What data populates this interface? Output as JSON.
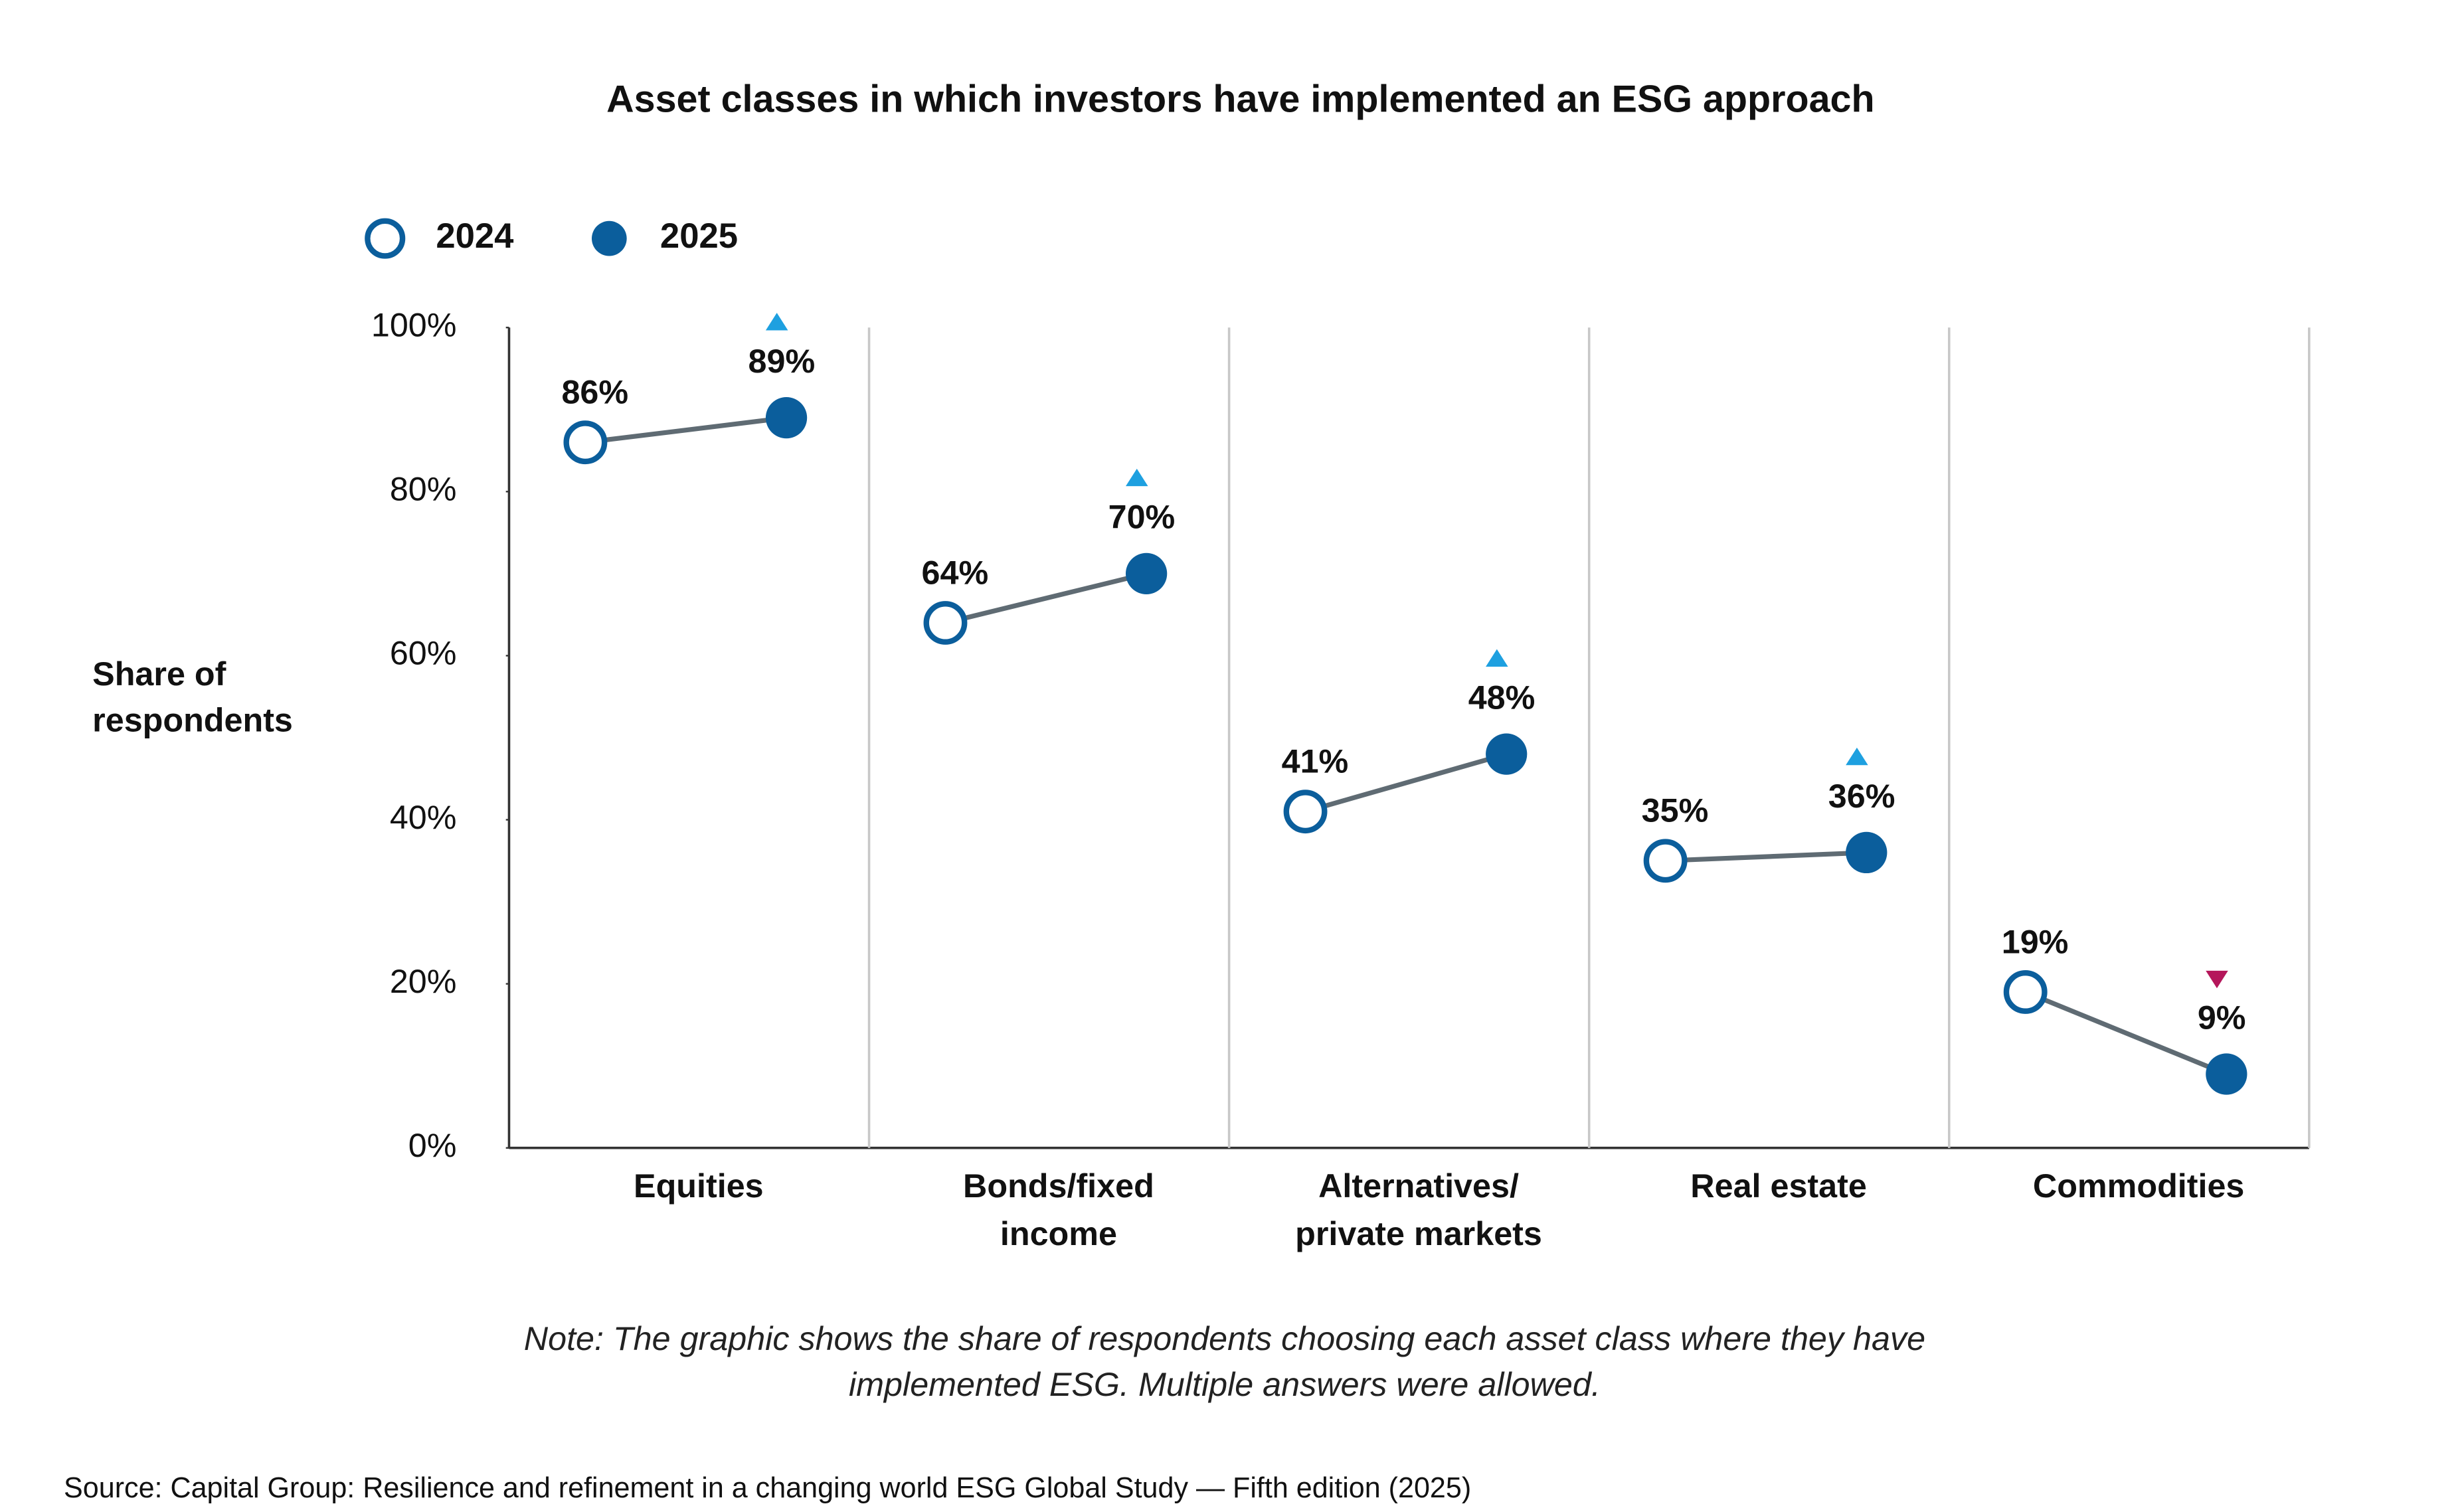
{
  "chart_data": {
    "type": "dumbbell",
    "title": "Asset classes in which investors have implemented an ESG approach",
    "y_label": "Share of respondents",
    "categories": [
      "Equities",
      "Bonds/fixed income",
      "Alternatives/ private markets",
      "Real estate",
      "Commodities"
    ],
    "series": [
      {
        "name": "2024",
        "color": "#0b5e9c",
        "values": [
          86,
          64,
          41,
          35,
          19
        ],
        "value_labels": [
          "86%",
          "64%",
          "41%",
          "35%",
          "19%"
        ]
      },
      {
        "name": "2025",
        "color": "#0b5e9c",
        "values": [
          89,
          70,
          48,
          36,
          9
        ],
        "value_labels": [
          "89%",
          "70%",
          "48%",
          "36%",
          "9%"
        ]
      }
    ],
    "ylim": [
      0,
      100
    ],
    "yticks": [
      {
        "value": 0,
        "label": "0%"
      },
      {
        "value": 20,
        "label": "20%"
      },
      {
        "value": 40,
        "label": "40%"
      },
      {
        "value": 60,
        "label": "60%"
      },
      {
        "value": 80,
        "label": "80%"
      },
      {
        "value": 100,
        "label": "100%"
      }
    ],
    "connector_color": "#5f6b73",
    "up_color": "#1ea0e0",
    "down_color": "#b5175b",
    "note": "Note: The graphic shows the share of respondents choosing each asset class where they have implemented ESG. Multiple answers were allowed.",
    "source": "Source: Capital Group: Resilience and refinement in a changing world ESG Global Study — Fifth edition (2025)"
  }
}
